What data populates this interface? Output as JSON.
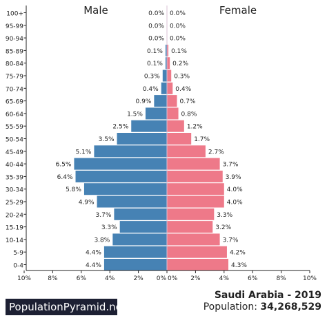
{
  "chart_data": {
    "type": "bar",
    "subtype": "population-pyramid",
    "left_title": "Male",
    "right_title": "Female",
    "categories": [
      "100+",
      "95-99",
      "90-94",
      "85-89",
      "80-84",
      "75-79",
      "70-74",
      "65-69",
      "60-64",
      "55-59",
      "50-54",
      "45-49",
      "40-44",
      "35-39",
      "30-34",
      "25-29",
      "20-24",
      "15-19",
      "10-14",
      "5-9",
      "0-4"
    ],
    "series": [
      {
        "name": "Male",
        "color": "#4682b4",
        "values": [
          0.0,
          0.0,
          0.0,
          0.1,
          0.1,
          0.3,
          0.4,
          0.9,
          1.5,
          2.5,
          3.5,
          5.1,
          6.5,
          6.4,
          5.8,
          4.9,
          3.7,
          3.3,
          3.8,
          4.4,
          4.4
        ],
        "labels": [
          "0.0%",
          "0.0%",
          "0.0%",
          "0.1%",
          "0.1%",
          "0.3%",
          "0.4%",
          "0.9%",
          "1.5%",
          "2.5%",
          "3.5%",
          "5.1%",
          "6.5%",
          "6.4%",
          "5.8%",
          "4.9%",
          "3.7%",
          "3.3%",
          "3.8%",
          "4.4%",
          "4.4%"
        ]
      },
      {
        "name": "Female",
        "color": "#ee7989",
        "values": [
          0.0,
          0.0,
          0.0,
          0.1,
          0.2,
          0.3,
          0.4,
          0.7,
          0.8,
          1.2,
          1.7,
          2.7,
          3.7,
          3.9,
          4.0,
          4.0,
          3.3,
          3.2,
          3.7,
          4.2,
          4.3
        ],
        "labels": [
          "0.0%",
          "0.0%",
          "0.0%",
          "0.1%",
          "0.2%",
          "0.3%",
          "0.4%",
          "0.7%",
          "0.8%",
          "1.2%",
          "1.7%",
          "2.7%",
          "3.7%",
          "3.9%",
          "4.0%",
          "4.0%",
          "3.3%",
          "3.2%",
          "3.7%",
          "4.2%",
          "4.3%"
        ]
      }
    ],
    "x_ticks_left": [
      "10%",
      "8%",
      "6%",
      "4%",
      "2%",
      "0%"
    ],
    "x_ticks_right": [
      "0%",
      "2%",
      "4%",
      "6%",
      "8%",
      "10%"
    ],
    "xlim": [
      0,
      10
    ],
    "grid": false
  },
  "branding": {
    "site": "PopulationPyramid.net"
  },
  "caption": {
    "country_year": "Saudi Arabia - 2019",
    "population_label": "Population:",
    "population_value": "34,268,529"
  }
}
